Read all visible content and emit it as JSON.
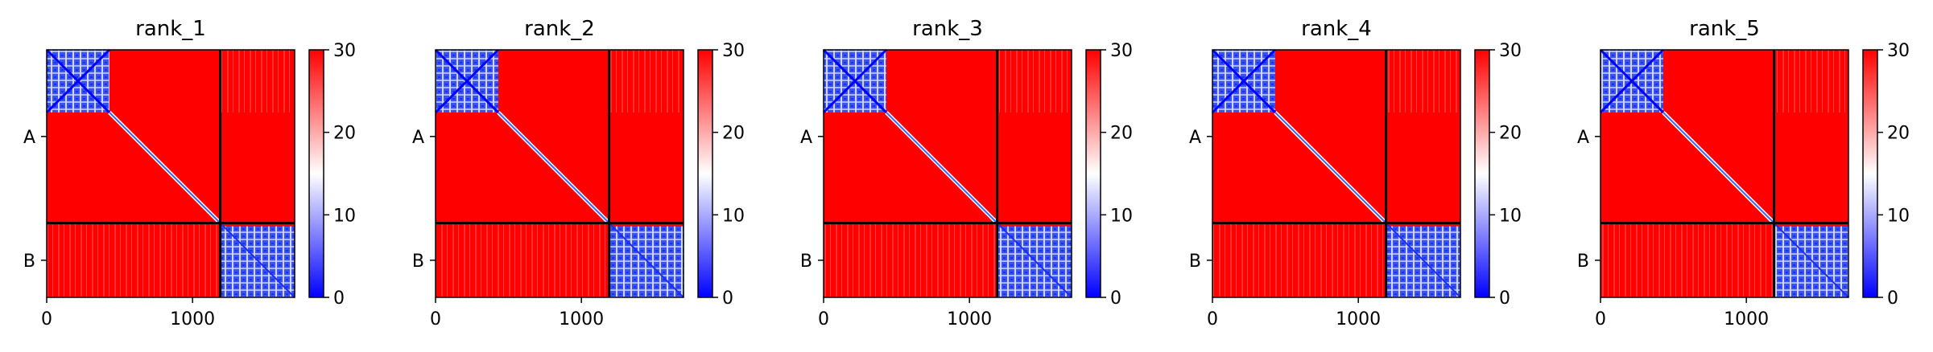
{
  "chart_data": {
    "type": "heatmap",
    "panels": [
      {
        "title": "rank_1"
      },
      {
        "title": "rank_2"
      },
      {
        "title": "rank_3"
      },
      {
        "title": "rank_4"
      },
      {
        "title": "rank_5"
      }
    ],
    "x_range": [
      0,
      1700
    ],
    "x_ticks": [
      0,
      1000
    ],
    "x_tick_labels": [
      "0",
      "1000"
    ],
    "y_range": [
      0,
      1700
    ],
    "chain_boundary": 1190,
    "chains": [
      {
        "label": "A",
        "start": 0,
        "end": 1190
      },
      {
        "label": "B",
        "start": 1190,
        "end": 1700
      }
    ],
    "colorbar": {
      "range": [
        0,
        30
      ],
      "ticks": [
        0,
        10,
        20,
        30
      ],
      "tick_labels": [
        "0",
        "10",
        "20",
        "30"
      ],
      "colormap": "bwr",
      "colors": {
        "low": "#0000ff",
        "mid": "#ffffff",
        "high": "#ff0000"
      }
    },
    "features": {
      "chain_A_low_block": [
        0,
        430
      ],
      "chain_B_low_block": [
        1190,
        1700
      ],
      "diagonal_low": true,
      "background_value": 30
    }
  }
}
